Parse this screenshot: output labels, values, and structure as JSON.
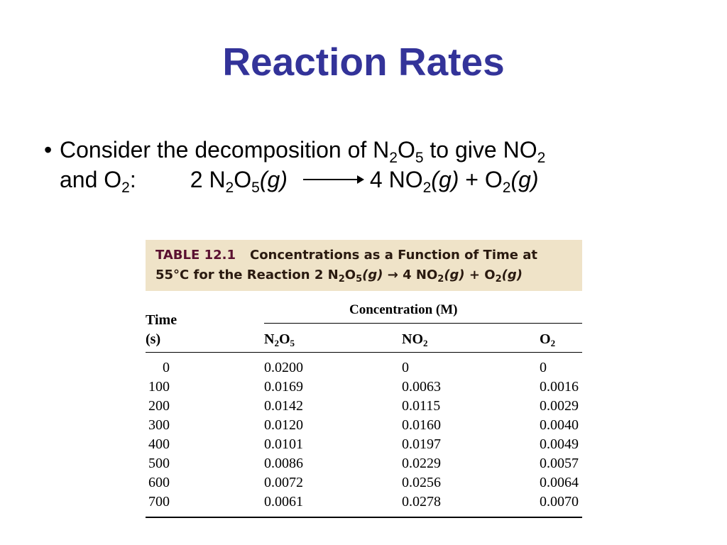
{
  "title": "Reaction Rates",
  "bullet": {
    "dot": "•",
    "line1_text": "Consider the decomposition of N",
    "line1_sub1": "2",
    "line1_o": "O",
    "line1_sub2": "5",
    "line1_rest": " to give NO",
    "line1_sub3": "2",
    "line2_and": "and O",
    "line2_sub": "2",
    "line2_colon": ":",
    "eq_reactant": "2 N",
    "eq_r_sub1": "2",
    "eq_r_o": "O",
    "eq_r_sub2": "5",
    "eq_r_state": "(g)",
    "eq_p1": "4 NO",
    "eq_p1_sub": "2",
    "eq_p1_state": "(g)",
    "eq_plus": " + O",
    "eq_p2_sub": "2",
    "eq_p2_state": "(g)"
  },
  "table": {
    "label": "TABLE 12.1",
    "caption1": "Concentrations as a Function of Time at",
    "caption2_prefix": "55°C for the Reaction 2 N",
    "caption2_sub1": "2",
    "caption2_o": "O",
    "caption2_sub2": "5",
    "caption2_g1": "(g)",
    "caption2_arrow": " → 4 NO",
    "caption2_sub3": "2",
    "caption2_g2": "(g)",
    "caption2_plus": " + O",
    "caption2_sub4": "2",
    "caption2_g3": "(g)",
    "concentration_header": "Concentration (M)",
    "time_header_1": "Time",
    "time_header_2": "(s)",
    "col_n2o5": "N",
    "col_n2o5_sub1": "2",
    "col_n2o5_o": "O",
    "col_n2o5_sub2": "5",
    "col_no2": "NO",
    "col_no2_sub": "2",
    "col_o2": "O",
    "col_o2_sub": "2",
    "rows": [
      {
        "time": "0",
        "n2o5": "0.0200",
        "no2": "0",
        "o2": "0"
      },
      {
        "time": "100",
        "n2o5": "0.0169",
        "no2": "0.0063",
        "o2": "0.0016"
      },
      {
        "time": "200",
        "n2o5": "0.0142",
        "no2": "0.0115",
        "o2": "0.0029"
      },
      {
        "time": "300",
        "n2o5": "0.0120",
        "no2": "0.0160",
        "o2": "0.0040"
      },
      {
        "time": "400",
        "n2o5": "0.0101",
        "no2": "0.0197",
        "o2": "0.0049"
      },
      {
        "time": "500",
        "n2o5": "0.0086",
        "no2": "0.0229",
        "o2": "0.0057"
      },
      {
        "time": "600",
        "n2o5": "0.0072",
        "no2": "0.0256",
        "o2": "0.0064"
      },
      {
        "time": "700",
        "n2o5": "0.0061",
        "no2": "0.0278",
        "o2": "0.0070"
      }
    ]
  }
}
